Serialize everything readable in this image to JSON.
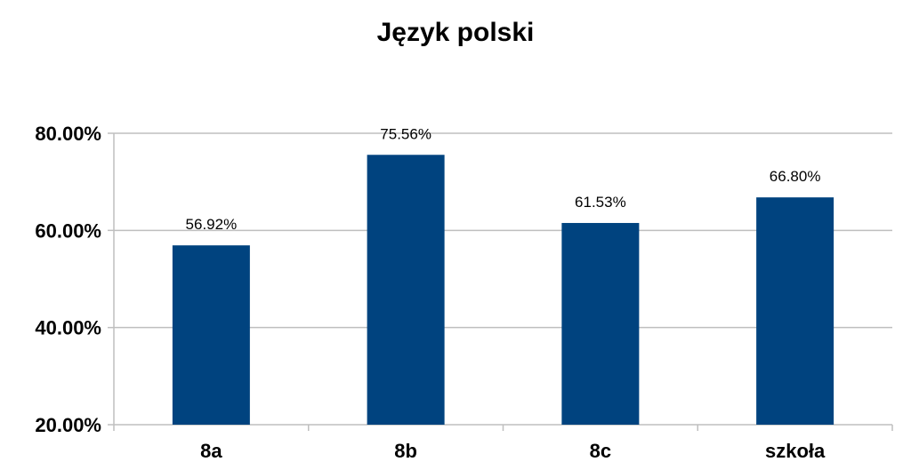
{
  "chart_data": {
    "type": "bar",
    "title": "Język polski",
    "categories": [
      "8a",
      "8b",
      "8c",
      "szkoła"
    ],
    "values": [
      56.92,
      75.56,
      61.53,
      66.8
    ],
    "data_labels": [
      "56.92%",
      "75.56%",
      "61.53%",
      "66.80%"
    ],
    "y_ticks": [
      20,
      40,
      60,
      80
    ],
    "y_tick_labels": [
      "20.00%",
      "40.00%",
      "60.00%",
      "80.00%"
    ],
    "ylim": [
      20,
      80
    ],
    "grid": true,
    "bar_color": "#00437f",
    "grid_color": "#bfbfbf"
  }
}
